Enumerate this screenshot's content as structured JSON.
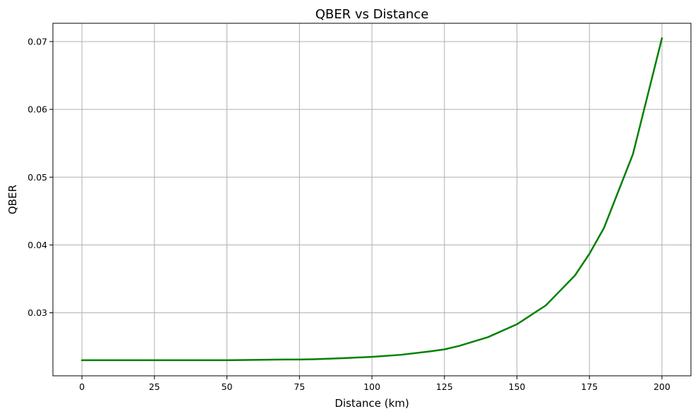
{
  "chart_data": {
    "type": "line",
    "title": "QBER vs Distance",
    "xlabel": "Distance (km)",
    "ylabel": "QBER",
    "xlim": [
      -10,
      210
    ],
    "ylim": [
      0.0207,
      0.0727
    ],
    "grid": true,
    "xticks": [
      0,
      25,
      50,
      75,
      100,
      125,
      150,
      175,
      200
    ],
    "xtick_labels": [
      "0",
      "25",
      "50",
      "75",
      "100",
      "125",
      "150",
      "175",
      "200"
    ],
    "yticks": [
      0.03,
      0.04,
      0.05,
      0.06,
      0.07
    ],
    "ytick_labels": [
      "0.03",
      "0.04",
      "0.05",
      "0.06",
      "0.07"
    ],
    "series": [
      {
        "color": "#008000",
        "x": [
          0,
          25,
          50,
          60,
          70,
          75,
          80,
          90,
          100,
          110,
          120,
          125,
          130,
          140,
          150,
          160,
          170,
          175,
          180,
          190,
          200
        ],
        "y": [
          0.023,
          0.023,
          0.023,
          0.02305,
          0.0231,
          0.0231,
          0.02315,
          0.0233,
          0.0235,
          0.0238,
          0.0243,
          0.0246,
          0.0251,
          0.0264,
          0.0283,
          0.0311,
          0.0355,
          0.0387,
          0.0425,
          0.0534,
          0.0705
        ]
      }
    ]
  }
}
